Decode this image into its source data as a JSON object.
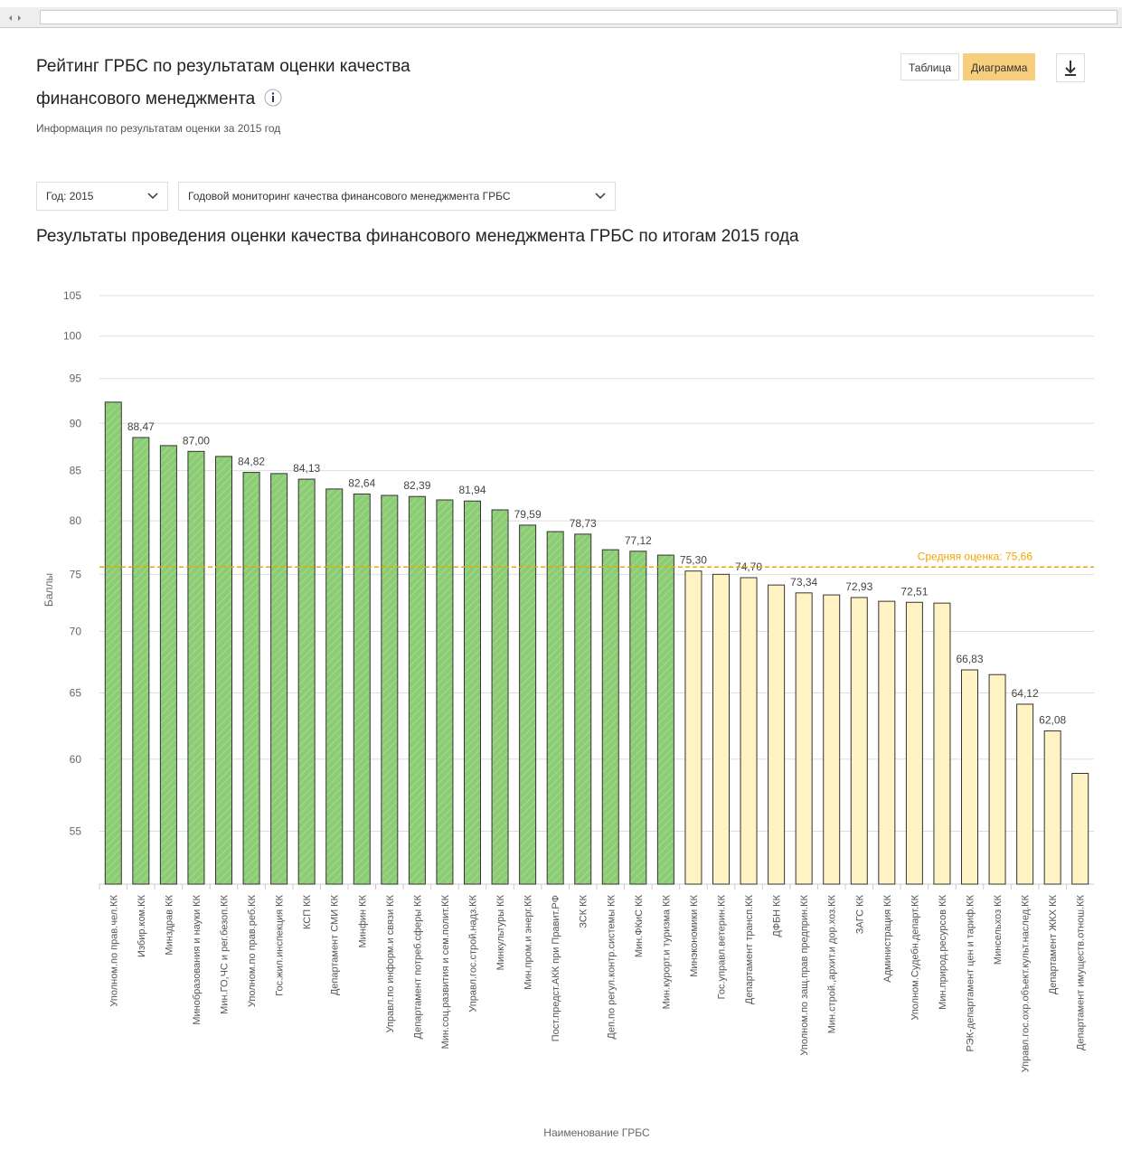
{
  "header": {
    "title": "Рейтинг ГРБС по результатам оценки качества финансового менеджмента",
    "subtitle": "Информация по результатам оценки за 2015 год",
    "view_buttons": [
      "Таблица",
      "Диаграмма"
    ]
  },
  "filters": {
    "year": "Год: 2015",
    "monitoring": "Годовой мониторинг качества финансового менеджмента ГРБС"
  },
  "chart_data": {
    "type": "bar",
    "title": "Результаты проведения оценки качества финансового менеджмента ГРБС по итогам 2015 года",
    "x_label": "Наименование ГРБС",
    "y_label": "Баллы",
    "categories": [
      "Уполном.по прав.чел.КК",
      "Избир.ком.КК",
      "Минздрав КК",
      "Минобразования и науки КК",
      "Мин.ГО,ЧС и рег.безоп.КК",
      "Уполном.по прав.реб.КК",
      "Гос.жил.инспекция КК",
      "КСП КК",
      "Департамент СМИ КК",
      "Минфин КК",
      "Управл.по информ.и связи КК",
      "Департамент потреб.сферы КК",
      "Мин.соц.развития и сем.полит.КК",
      "Управл.гос.строй.надз.КК",
      "Минкультуры КК",
      "Мин.пром.и энерг.КК",
      "Пост.предст.АКК при Правит.РФ",
      "ЗСК КК",
      "Деп.по регул.контр.системы КК",
      "Мин.ФКиС КК",
      "Мин.курорт.и туризма КК",
      "Минэкономики КК",
      "Гос.управл.ветерин.КК",
      "Департамент трансп.КК",
      "ДФБН КК",
      "Уполном.по защ.прав предприн.КК",
      "Мин.строй.,архит.и дор.хоз.КК",
      "ЗАГС КК",
      "Администрация КК",
      "Уполном.Судебн.департ.КК",
      "Мин.природ.ресурсов КК",
      "РЭК-департамент цен и тариф.КК",
      "Минсельхоз КК",
      "Управл.гос.охр.объект.культ.наслед.КК",
      "Департамент ЖКХ КК",
      "Департамент имуществ.отнош.КК"
    ],
    "values": [
      92.33,
      88.47,
      87.61,
      87.0,
      86.47,
      84.82,
      84.7,
      84.13,
      83.14,
      82.64,
      82.5,
      82.39,
      82.05,
      81.94,
      81.07,
      79.59,
      78.97,
      78.73,
      77.26,
      77.12,
      76.76,
      75.3,
      75.0,
      74.7,
      74.04,
      73.34,
      73.16,
      72.93,
      72.6,
      72.51,
      72.44,
      66.83,
      66.45,
      64.12,
      62.08,
      58.98
    ],
    "value_labels": [
      null,
      "88,47",
      null,
      "87,00",
      null,
      "84,82",
      null,
      "84,13",
      null,
      "82,64",
      null,
      "82,39",
      null,
      "81,94",
      null,
      "79,59",
      null,
      "78,73",
      null,
      "77,12",
      null,
      "75,30",
      null,
      "74,70",
      null,
      "73,34",
      null,
      "72,93",
      null,
      "72,51",
      null,
      "66,83",
      null,
      "64,12",
      "62,08",
      null
    ],
    "color": "#8ccc74",
    "below_color": "#fff3c4",
    "reference_line": {
      "value": 75.66,
      "label": "Средняя оценка: 75,66",
      "color": "#f0a500"
    },
    "ylim": [
      51.6,
      105
    ],
    "yticks": [
      55,
      60,
      65,
      70,
      75,
      80,
      85,
      90,
      95,
      100,
      105
    ],
    "log_y": true,
    "grid": true
  }
}
